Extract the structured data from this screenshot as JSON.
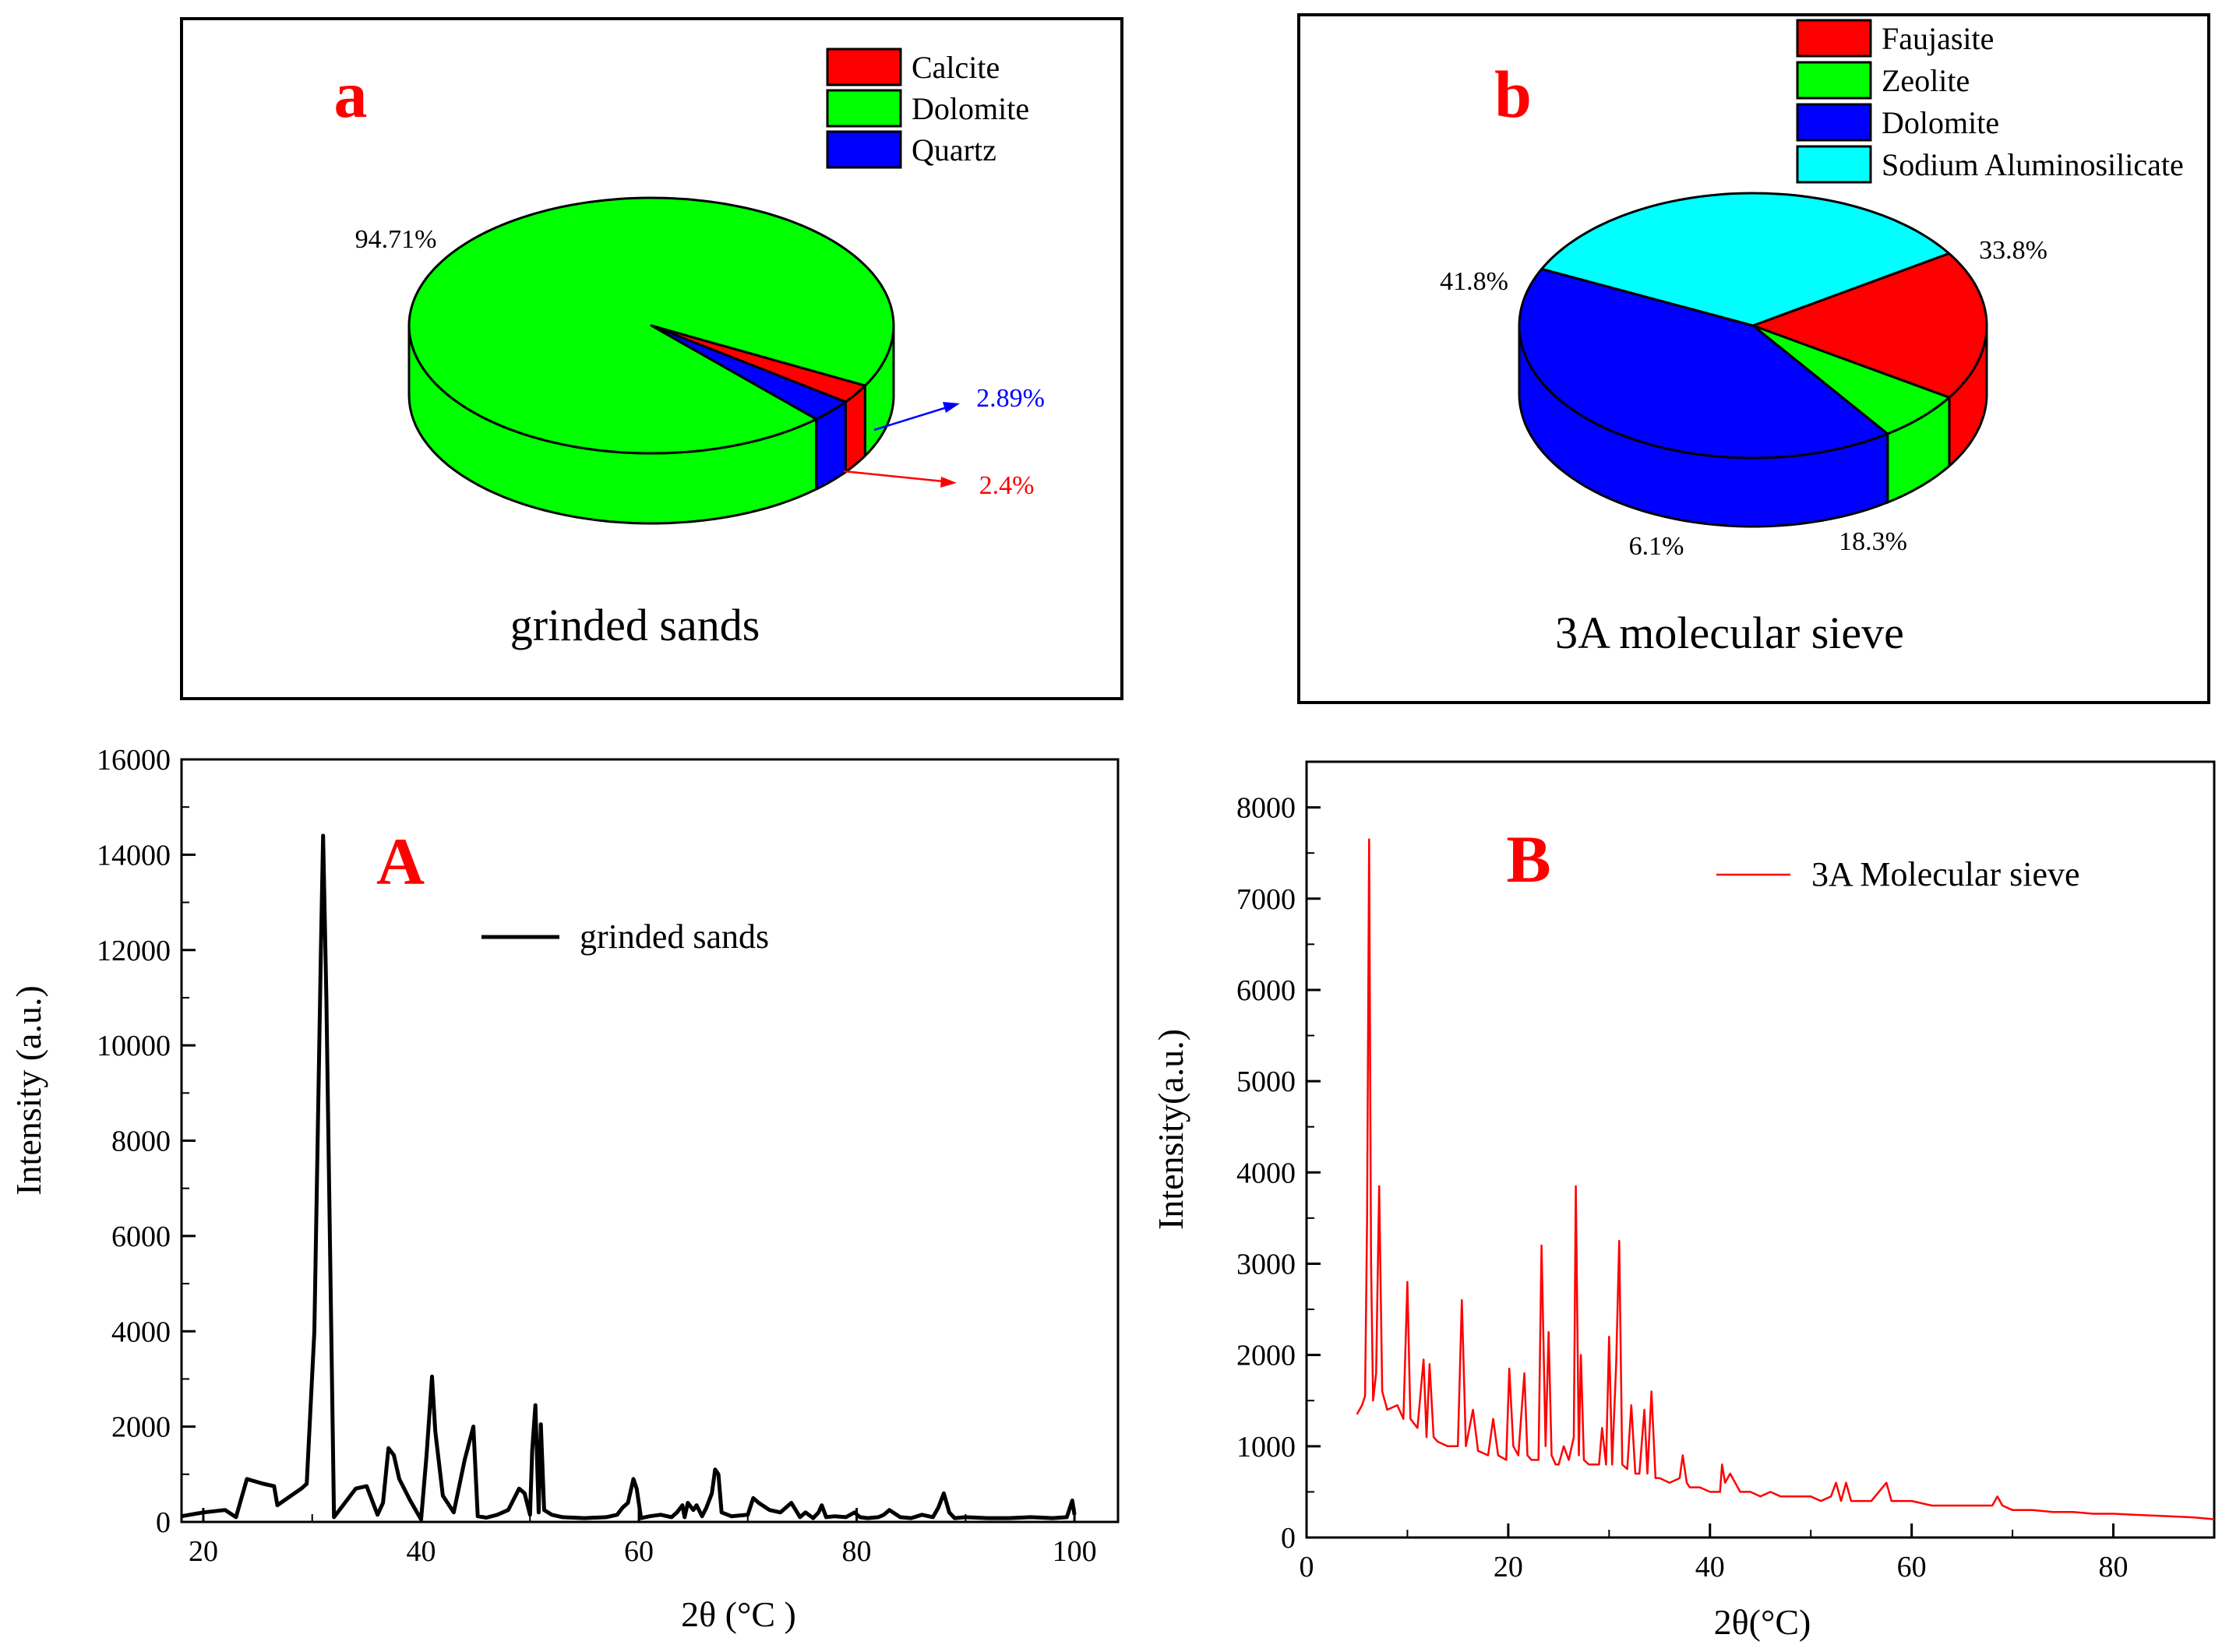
{
  "chart_data": [
    {
      "type": "pie",
      "panel_letter": "a",
      "caption": "grinded sands",
      "labels": [
        "Calcite",
        "Dolomite",
        "Quartz"
      ],
      "values": [
        2.4,
        94.71,
        2.89
      ],
      "value_labels": [
        "2.4%",
        "94.71%",
        "2.89%"
      ],
      "colors": [
        "#ff0000",
        "#00ff00",
        "#0000ff"
      ],
      "value_label_colors": [
        "#ff0000",
        "#000000",
        "#0000ff"
      ],
      "legend_position": "top-right",
      "three_d": true
    },
    {
      "type": "pie",
      "panel_letter": "b",
      "caption": "3A molecular sieve",
      "labels": [
        "Faujasite",
        "Zeolite",
        "Dolomite",
        "Sodium Aluminosilicate"
      ],
      "values": [
        18.3,
        6.1,
        41.8,
        33.8
      ],
      "value_labels": [
        "18.3%",
        "6.1%",
        "41.8%",
        "33.8%"
      ],
      "colors": [
        "#ff0000",
        "#00ff00",
        "#0000ff",
        "#00ffff"
      ],
      "legend_position": "top-right",
      "three_d": true
    },
    {
      "type": "line",
      "panel_letter": "A",
      "xlabel": "2θ (°C )",
      "ylabel": "Intensity (a.u.)",
      "xlim": [
        18,
        104
      ],
      "ylim": [
        0,
        16000
      ],
      "xticks": [
        20,
        40,
        60,
        80,
        100
      ],
      "yticks": [
        0,
        2000,
        4000,
        6000,
        8000,
        10000,
        12000,
        14000,
        16000
      ],
      "legend_position": "upper-middle",
      "series": [
        {
          "name": "grinded sands",
          "color": "#000000",
          "x": [
            18,
            20,
            22,
            23,
            24,
            25.5,
            26.5,
            26.8,
            29,
            29.5,
            30.2,
            30.8,
            31.0,
            31.3,
            32,
            33,
            34,
            35,
            36,
            36.5,
            37,
            37.5,
            38,
            39,
            40,
            40.5,
            41,
            41.3,
            42,
            43,
            44,
            44.8,
            45.2,
            46,
            47,
            48,
            49,
            49.5,
            50,
            50.2,
            50.5,
            50.8,
            51,
            51.3,
            52,
            53,
            55,
            57,
            58,
            58.5,
            59,
            59.5,
            59.8,
            60.2,
            61,
            62,
            63,
            63.5,
            64,
            64.2,
            64.5,
            65,
            65.3,
            65.8,
            66.2,
            66.7,
            67,
            67.3,
            67.6,
            68.5,
            70,
            70.5,
            71,
            72,
            73,
            74,
            74.8,
            75.3,
            76,
            76.5,
            76.8,
            77.2,
            78,
            79,
            79.8,
            80.3,
            81,
            82,
            82.5,
            83,
            84,
            85,
            86,
            87,
            87.5,
            88,
            88.5,
            89,
            90,
            92,
            94,
            96,
            98,
            99.3,
            99.8,
            100
          ],
          "y": [
            120,
            200,
            250,
            100,
            900,
            800,
            750,
            350,
            700,
            800,
            4000,
            12000,
            14400,
            11000,
            100,
            400,
            700,
            750,
            150,
            400,
            1550,
            1400,
            900,
            450,
            50,
            1400,
            3050,
            1900,
            550,
            200,
            1300,
            2000,
            120,
            90,
            150,
            250,
            700,
            600,
            150,
            1500,
            2450,
            200,
            2050,
            250,
            150,
            100,
            80,
            100,
            150,
            300,
            400,
            900,
            700,
            80,
            120,
            150,
            100,
            200,
            350,
            100,
            400,
            250,
            350,
            120,
            300,
            600,
            1100,
            1000,
            200,
            120,
            150,
            500,
            400,
            250,
            200,
            400,
            100,
            200,
            80,
            200,
            350,
            100,
            120,
            100,
            200,
            100,
            80,
            100,
            150,
            250,
            100,
            80,
            150,
            100,
            300,
            600,
            200,
            80,
            100,
            80,
            80,
            100,
            80,
            100,
            450,
            150
          ]
        }
      ]
    },
    {
      "type": "line",
      "panel_letter": "B",
      "xlabel": "2θ(°C)",
      "ylabel": "Intensity(a.u.)",
      "xlim": [
        0,
        90
      ],
      "ylim": [
        0,
        8500
      ],
      "xticks": [
        0,
        20,
        40,
        60,
        80
      ],
      "yticks": [
        0,
        1000,
        2000,
        3000,
        4000,
        5000,
        6000,
        7000,
        8000
      ],
      "legend_position": "top-right",
      "series": [
        {
          "name": "3A Molecular sieve",
          "color": "#ff0000",
          "x": [
            5,
            5.5,
            5.8,
            6.0,
            6.2,
            6.4,
            6.6,
            6.9,
            7.2,
            7.5,
            8,
            9,
            9.6,
            10,
            10.3,
            11,
            11.6,
            11.9,
            12.2,
            12.6,
            13,
            14,
            15,
            15.4,
            15.8,
            16.5,
            17,
            18,
            18.5,
            19,
            19.8,
            20.1,
            20.5,
            21,
            21.6,
            21.9,
            22.3,
            23,
            23.3,
            23.7,
            24,
            24.3,
            24.7,
            25,
            25.5,
            26,
            26.5,
            26.7,
            27,
            27.2,
            27.5,
            28,
            29,
            29.3,
            29.7,
            30,
            30.3,
            30.7,
            31,
            31.3,
            31.8,
            32.2,
            32.6,
            33,
            33.5,
            33.8,
            34.2,
            34.6,
            35,
            36,
            37,
            37.3,
            37.7,
            38,
            39,
            40,
            41,
            41.2,
            41.5,
            42,
            43,
            44,
            45,
            46,
            47,
            48,
            50,
            51,
            52,
            52.5,
            53,
            53.5,
            54,
            56,
            57.5,
            58,
            60,
            62,
            64,
            66,
            68,
            68.5,
            69,
            70,
            72,
            74,
            76,
            78,
            80,
            82,
            84,
            86,
            88,
            89,
            90
          ],
          "y": [
            1350,
            1450,
            1550,
            3500,
            7650,
            3000,
            1500,
            1800,
            3850,
            1600,
            1400,
            1450,
            1300,
            2800,
            1300,
            1200,
            1950,
            1100,
            1900,
            1100,
            1050,
            1000,
            1000,
            2600,
            1000,
            1400,
            950,
            900,
            1300,
            900,
            850,
            1850,
            1000,
            900,
            1800,
            900,
            850,
            850,
            3200,
            1000,
            2250,
            900,
            800,
            800,
            1000,
            850,
            1100,
            3850,
            900,
            2000,
            850,
            800,
            800,
            1200,
            800,
            2200,
            800,
            1900,
            3250,
            800,
            750,
            1450,
            700,
            700,
            1400,
            700,
            1600,
            650,
            650,
            600,
            650,
            900,
            600,
            550,
            550,
            500,
            500,
            800,
            600,
            700,
            500,
            500,
            450,
            500,
            450,
            450,
            450,
            400,
            450,
            600,
            400,
            600,
            400,
            400,
            600,
            400,
            400,
            350,
            350,
            350,
            350,
            450,
            350,
            300,
            300,
            280,
            280,
            260,
            260,
            250,
            240,
            230,
            220,
            210,
            200
          ]
        }
      ]
    }
  ]
}
